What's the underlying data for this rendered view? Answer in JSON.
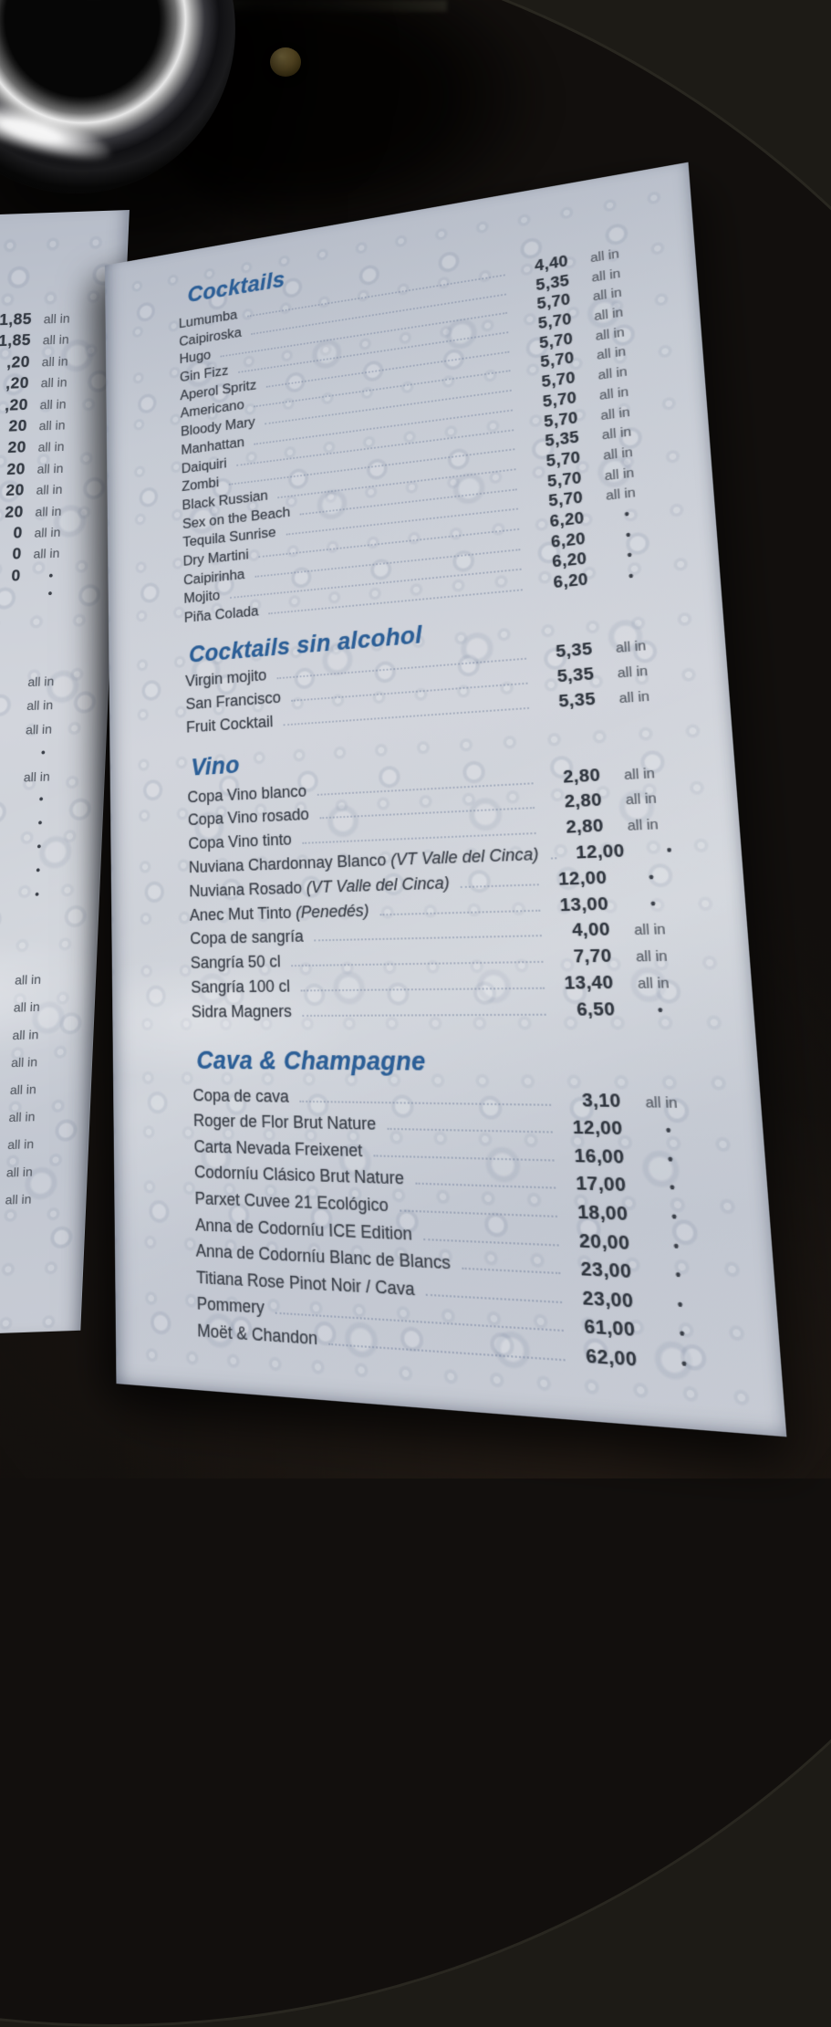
{
  "colors": {
    "heading_blue": "#2c5f97",
    "item_text": "#3b4049",
    "tag_gray": "#5a5f68",
    "page_background": "#c9cdd6",
    "table_background": "#14100d"
  },
  "left_page": {
    "groups": [
      {
        "rows": [
          {
            "price": "1,85",
            "tag": "all in"
          },
          {
            "price": "1,85",
            "tag": "all in"
          },
          {
            "price": ",20",
            "tag": "all in"
          },
          {
            "price": ",20",
            "tag": "all in"
          },
          {
            "price": ",20",
            "tag": "all in"
          },
          {
            "price": "20",
            "tag": "all in"
          },
          {
            "price": "20",
            "tag": "all in"
          },
          {
            "price": "20",
            "tag": "all in"
          },
          {
            "price": "20",
            "tag": "all in"
          },
          {
            "price": "20",
            "tag": "all in"
          },
          {
            "price": "0",
            "tag": "all in"
          },
          {
            "price": "0",
            "tag": "all in"
          },
          {
            "price": "0",
            "tag": "•"
          },
          {
            "price": "",
            "tag": "•"
          }
        ]
      },
      {
        "rows": [
          {
            "price": "",
            "tag": "all in"
          },
          {
            "price": "",
            "tag": "all in"
          },
          {
            "price": "",
            "tag": "all in"
          },
          {
            "price": "",
            "tag": "•"
          },
          {
            "price": "",
            "tag": "all in"
          },
          {
            "price": "",
            "tag": "•"
          },
          {
            "price": "",
            "tag": "•"
          },
          {
            "price": "",
            "tag": "•"
          },
          {
            "price": "",
            "tag": "•"
          },
          {
            "price": "",
            "tag": "•"
          }
        ]
      },
      {
        "rows": [
          {
            "price": "",
            "tag": "all in"
          },
          {
            "price": "",
            "tag": "all in"
          },
          {
            "price": "",
            "tag": "all in"
          },
          {
            "price": "",
            "tag": "all in"
          },
          {
            "price": "",
            "tag": "all in"
          },
          {
            "price": "",
            "tag": "all in"
          },
          {
            "price": "",
            "tag": "all in"
          },
          {
            "price": "",
            "tag": "all in"
          },
          {
            "price": "",
            "tag": "all in"
          }
        ]
      }
    ]
  },
  "menu": {
    "sections": [
      {
        "title": "Cocktails",
        "items": [
          {
            "name": "Lumumba",
            "price": "4,40",
            "tag": "all in"
          },
          {
            "name": "Caipiroska",
            "price": "5,35",
            "tag": "all in"
          },
          {
            "name": "Hugo",
            "price": "5,70",
            "tag": "all in"
          },
          {
            "name": "Gin Fizz",
            "price": "5,70",
            "tag": "all in"
          },
          {
            "name": "Aperol Spritz",
            "price": "5,70",
            "tag": "all in"
          },
          {
            "name": "Americano",
            "price": "5,70",
            "tag": "all in"
          },
          {
            "name": "Bloody Mary",
            "price": "5,70",
            "tag": "all in"
          },
          {
            "name": "Manhattan",
            "price": "5,70",
            "tag": "all in"
          },
          {
            "name": "Daiquiri",
            "price": "5,70",
            "tag": "all in"
          },
          {
            "name": "Zombi",
            "price": "5,35",
            "tag": "all in"
          },
          {
            "name": "Black Russian",
            "price": "5,70",
            "tag": "all in"
          },
          {
            "name": "Sex on the Beach",
            "price": "5,70",
            "tag": "all in"
          },
          {
            "name": "Tequila Sunrise",
            "price": "5,70",
            "tag": "all in"
          },
          {
            "name": "Dry Martini",
            "price": "6,20",
            "tag": "•"
          },
          {
            "name": "Caipirinha",
            "price": "6,20",
            "tag": "•"
          },
          {
            "name": "Mojito",
            "price": "6,20",
            "tag": "•"
          },
          {
            "name": "Piña Colada",
            "price": "6,20",
            "tag": "•"
          }
        ]
      },
      {
        "title": "Cocktails sin alcohol",
        "items": [
          {
            "name": "Virgin mojito",
            "price": "5,35",
            "tag": "all in"
          },
          {
            "name": "San Francisco",
            "price": "5,35",
            "tag": "all in"
          },
          {
            "name": "Fruit Cocktail",
            "price": "5,35",
            "tag": "all in"
          }
        ]
      },
      {
        "title": "Vino",
        "items": [
          {
            "name": "Copa Vino blanco",
            "price": "2,80",
            "tag": "all in"
          },
          {
            "name": "Copa Vino rosado",
            "price": "2,80",
            "tag": "all in"
          },
          {
            "name": "Copa Vino tinto",
            "price": "2,80",
            "tag": "all in"
          },
          {
            "name": "Nuviana Chardonnay Blanco",
            "note": "(VT Valle del Cinca)",
            "price": "12,00",
            "tag": "•"
          },
          {
            "name": "Nuviana Rosado",
            "note": "(VT Valle del Cinca)",
            "price": "12,00",
            "tag": "•"
          },
          {
            "name": "Anec Mut Tinto",
            "note": "(Penedés)",
            "price": "13,00",
            "tag": "•"
          },
          {
            "name": "Copa de sangría",
            "price": "4,00",
            "tag": "all in"
          },
          {
            "name": "Sangría 50 cl",
            "price": "7,70",
            "tag": "all in"
          },
          {
            "name": "Sangría 100 cl",
            "price": "13,40",
            "tag": "all in"
          },
          {
            "name": "Sidra Magners",
            "price": "6,50",
            "tag": "•"
          }
        ]
      },
      {
        "title": "Cava & Champagne",
        "items": [
          {
            "name": "Copa de cava",
            "price": "3,10",
            "tag": "all in"
          },
          {
            "name": "Roger de Flor Brut Nature",
            "price": "12,00",
            "tag": "•"
          },
          {
            "name": "Carta Nevada Freixenet",
            "price": "16,00",
            "tag": "•"
          },
          {
            "name": "Codorníu Clásico Brut Nature",
            "price": "17,00",
            "tag": "•"
          },
          {
            "name": "Parxet Cuvee 21 Ecológico",
            "price": "18,00",
            "tag": "•"
          },
          {
            "name": "Anna de Codorníu ICE Edition",
            "price": "20,00",
            "tag": "•"
          },
          {
            "name": "Anna de Codorníu Blanc de Blancs",
            "price": "23,00",
            "tag": "•"
          },
          {
            "name": "Titiana Rose Pinot Noir / Cava",
            "price": "23,00",
            "tag": "•"
          },
          {
            "name": "Pommery",
            "price": "61,00",
            "tag": "•"
          },
          {
            "name": "Moët & Chandon",
            "price": "62,00",
            "tag": "•"
          }
        ]
      }
    ]
  }
}
